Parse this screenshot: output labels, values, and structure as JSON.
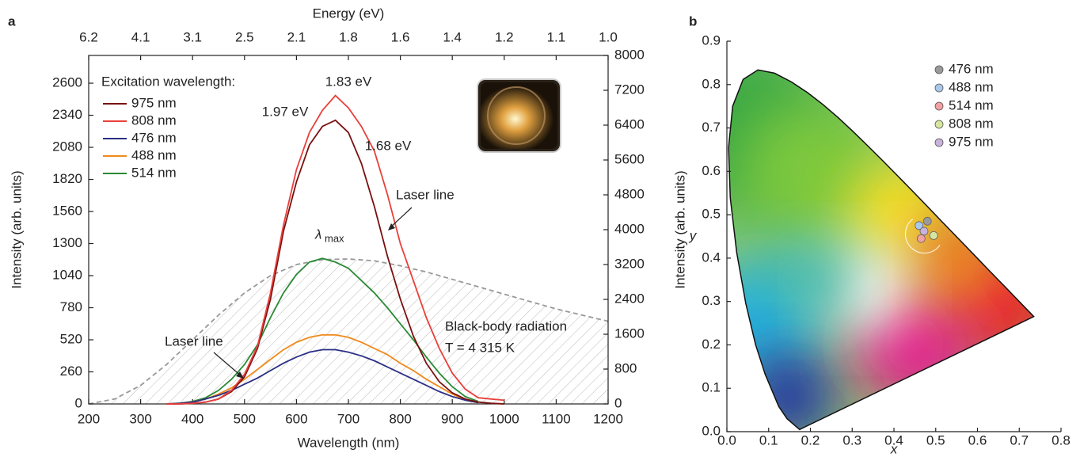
{
  "chart_data": [
    {
      "type": "line",
      "panel_label": "a",
      "xlabel": "Wavelength (nm)",
      "ylabel": "Intensity (arb. units)",
      "y2label": "Intensity (arb. units)",
      "x2label": "Energy (eV)",
      "xlim": [
        200,
        1200
      ],
      "xticks": [
        200,
        300,
        400,
        500,
        600,
        700,
        800,
        900,
        1000,
        1100,
        1200
      ],
      "x2ticks": [
        6.2,
        4.1,
        3.1,
        2.5,
        2.1,
        1.8,
        1.6,
        1.4,
        1.2,
        1.1,
        {
          "value": 1,
          "label": "1.0"
        }
      ],
      "ylim": [
        0,
        2825
      ],
      "yticks": [
        0,
        260,
        520,
        780,
        1040,
        1300,
        1560,
        1820,
        2080,
        2340,
        2600
      ],
      "y2lim": [
        0,
        8000
      ],
      "y2ticks": [
        0,
        800,
        1600,
        2400,
        3200,
        4000,
        4800,
        5600,
        6400,
        7200,
        8000
      ],
      "legend_title": "Excitation wavelength:",
      "x": [
        350,
        375,
        400,
        425,
        450,
        475,
        500,
        525,
        550,
        575,
        600,
        625,
        650,
        675,
        700,
        725,
        750,
        775,
        800,
        825,
        850,
        875,
        900,
        925,
        950,
        975,
        1000
      ],
      "series": [
        {
          "name": "975 nm",
          "color": "#7a1010",
          "values": [
            0,
            0,
            5,
            15,
            40,
            100,
            220,
            450,
            850,
            1400,
            1800,
            2100,
            2250,
            2300,
            2200,
            1950,
            1600,
            1200,
            850,
            550,
            330,
            180,
            90,
            40,
            15,
            5,
            0
          ]
        },
        {
          "name": "808 nm",
          "color": "#e8403a",
          "values": [
            0,
            0,
            5,
            15,
            40,
            110,
            240,
            470,
            900,
            1450,
            1900,
            2200,
            2380,
            2500,
            2400,
            2250,
            2050,
            1700,
            1300,
            1000,
            700,
            450,
            250,
            120,
            50,
            40,
            30
          ]
        },
        {
          "name": "476 nm",
          "color": "#2b2f85",
          "values": [
            0,
            5,
            15,
            40,
            70,
            110,
            160,
            210,
            270,
            330,
            380,
            420,
            440,
            440,
            420,
            390,
            350,
            300,
            250,
            200,
            150,
            100,
            60,
            30,
            10,
            null,
            null
          ]
        },
        {
          "name": "488 nm",
          "color": "#f08a1c",
          "values": [
            0,
            5,
            15,
            40,
            80,
            130,
            200,
            280,
            360,
            440,
            500,
            540,
            560,
            560,
            540,
            500,
            450,
            400,
            330,
            270,
            200,
            140,
            80,
            30,
            10,
            null,
            null
          ]
        },
        {
          "name": "514 nm",
          "color": "#2a8a35",
          "values": [
            0,
            5,
            20,
            50,
            110,
            200,
            320,
            480,
            700,
            900,
            1050,
            1150,
            1180,
            1150,
            1100,
            1000,
            900,
            780,
            650,
            520,
            380,
            250,
            140,
            60,
            20,
            null,
            null
          ]
        }
      ],
      "reference_curve": {
        "color": "#999999",
        "x": [
          200,
          250,
          300,
          350,
          400,
          450,
          500,
          550,
          600,
          650,
          700,
          750,
          800,
          850,
          900,
          950,
          1000,
          1050,
          1100,
          1150,
          1200
        ],
        "values": [
          0,
          40,
          150,
          320,
          520,
          720,
          900,
          1040,
          1130,
          1170,
          1175,
          1160,
          1120,
          1070,
          1010,
          950,
          890,
          830,
          770,
          720,
          670
        ]
      },
      "annotations": [
        "1.83 eV",
        "1.97 eV",
        "1.68 eV",
        "Laser line",
        "Laser line",
        "Black-body radiation",
        "T = 4 315 K"
      ],
      "lambda_label": {
        "symbol": "λ",
        "subscript": "max"
      }
    },
    {
      "type": "scatter",
      "panel_label": "b",
      "xlabel": "x",
      "ylabel": "y",
      "xlim": [
        0,
        0.8
      ],
      "xticks": [
        {
          "value": 0,
          "label": "0.0"
        },
        0.1,
        0.2,
        0.3,
        0.4,
        0.5,
        0.6,
        0.7,
        0.8
      ],
      "ylim": [
        0,
        0.9
      ],
      "yticks": [
        {
          "value": 0,
          "label": "0.0"
        },
        0.1,
        0.2,
        0.3,
        0.4,
        0.5,
        0.6,
        0.7,
        0.8,
        0.9
      ],
      "series": [
        {
          "name": "476 nm",
          "color": "#9a9a9a",
          "x": [
            0.48
          ],
          "values": [
            0.485
          ]
        },
        {
          "name": "488 nm",
          "color": "#a9c8ec",
          "x": [
            0.46
          ],
          "values": [
            0.475
          ]
        },
        {
          "name": "514 nm",
          "color": "#f2a0a0",
          "x": [
            0.465
          ],
          "values": [
            0.445
          ]
        },
        {
          "name": "808 nm",
          "color": "#d6e6a0",
          "x": [
            0.495
          ],
          "values": [
            0.452
          ]
        },
        {
          "name": "975 nm",
          "color": "#c9b3dc",
          "x": [
            0.472
          ],
          "values": [
            0.462
          ]
        }
      ]
    }
  ]
}
